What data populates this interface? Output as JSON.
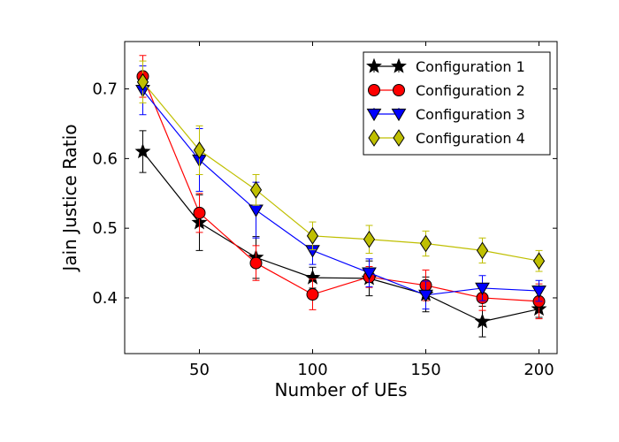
{
  "chart_data": {
    "type": "line",
    "xlabel": "Number of UEs",
    "ylabel": "Jain Justice Ratio",
    "xlim": [
      17,
      208
    ],
    "ylim": [
      0.32,
      0.768
    ],
    "xticks": [
      50,
      100,
      150,
      200
    ],
    "yticks": [
      0.4,
      0.5,
      0.6,
      0.7
    ],
    "grid": false,
    "legend_position": "top-right",
    "x": [
      25,
      50,
      75,
      100,
      125,
      150,
      175,
      200
    ],
    "series": [
      {
        "name": "Configuration 1",
        "color": "#000000",
        "marker": "star",
        "values": [
          0.61,
          0.508,
          0.458,
          0.429,
          0.428,
          0.405,
          0.366,
          0.384
        ],
        "errors": [
          0.03,
          0.04,
          0.03,
          0.015,
          0.025,
          0.025,
          0.022,
          0.012
        ]
      },
      {
        "name": "Configuration 2",
        "color": "#ff0000",
        "marker": "circle",
        "values": [
          0.718,
          0.522,
          0.45,
          0.405,
          0.43,
          0.418,
          0.4,
          0.395
        ],
        "errors": [
          0.03,
          0.028,
          0.025,
          0.022,
          0.015,
          0.022,
          0.018,
          0.025
        ]
      },
      {
        "name": "Configuration 3",
        "color": "#0000ff",
        "marker": "triangle-down",
        "values": [
          0.698,
          0.598,
          0.526,
          0.468,
          0.436,
          0.404,
          0.414,
          0.41
        ],
        "errors": [
          0.035,
          0.045,
          0.04,
          0.02,
          0.02,
          0.02,
          0.018,
          0.015
        ]
      },
      {
        "name": "Configuration 4",
        "color": "#bfbf00",
        "marker": "diamond",
        "values": [
          0.71,
          0.612,
          0.555,
          0.489,
          0.484,
          0.478,
          0.468,
          0.453
        ],
        "errors": [
          0.03,
          0.035,
          0.022,
          0.02,
          0.02,
          0.018,
          0.018,
          0.015
        ]
      }
    ]
  }
}
